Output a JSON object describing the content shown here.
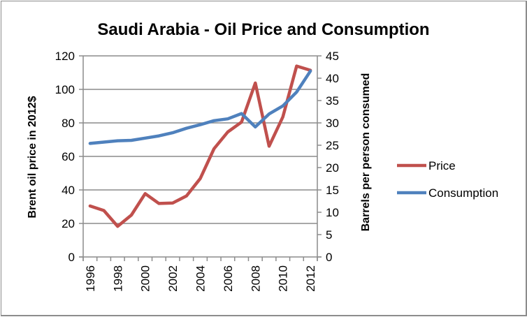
{
  "chart_data": {
    "type": "line",
    "title": "Saudi Arabia - Oil Price and Consumption",
    "xlabel": "",
    "ylabel": "Brent oil price in 2012$",
    "y2label": "Barrels per person consumed",
    "categories": [
      "1996",
      "1997",
      "1998",
      "1999",
      "2000",
      "2001",
      "2002",
      "2003",
      "2004",
      "2005",
      "2006",
      "2007",
      "2008",
      "2009",
      "2010",
      "2011",
      "2012"
    ],
    "x_tick_labels": [
      "1996",
      "1998",
      "2000",
      "2002",
      "2004",
      "2006",
      "2008",
      "2010",
      "2012"
    ],
    "ylim": [
      0,
      120
    ],
    "y_ticks": [
      0,
      20,
      40,
      60,
      80,
      100,
      120
    ],
    "y2lim": [
      0,
      45
    ],
    "y2_ticks": [
      0,
      5,
      10,
      15,
      20,
      25,
      30,
      35,
      40,
      45
    ],
    "grid": true,
    "legend_position": "right",
    "series": [
      {
        "name": "Price",
        "axis": "left",
        "color": "#C0504D",
        "values": [
          30.4,
          27.7,
          18.3,
          25.0,
          37.8,
          31.9,
          32.2,
          36.4,
          46.8,
          64.6,
          74.6,
          80.5,
          103.8,
          66.1,
          83.6,
          113.9,
          111.4
        ]
      },
      {
        "name": "Consumption",
        "axis": "right",
        "color": "#4F81BD",
        "values": [
          25.4,
          25.7,
          26.0,
          26.1,
          26.6,
          27.1,
          27.8,
          28.8,
          29.6,
          30.5,
          30.9,
          32.1,
          29.1,
          32.0,
          33.8,
          36.9,
          41.6
        ]
      }
    ]
  }
}
